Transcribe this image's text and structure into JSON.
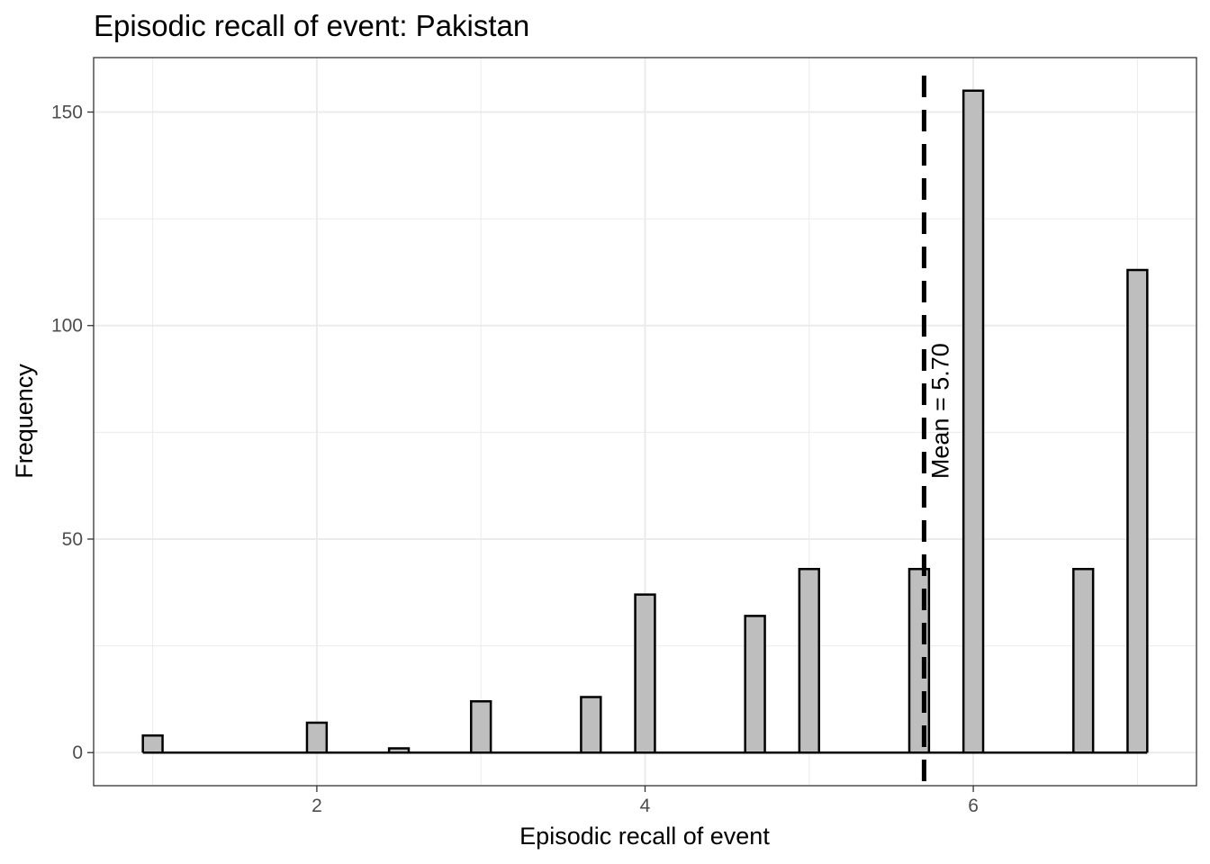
{
  "chart_data": {
    "type": "bar",
    "title": "Episodic recall of event: Pakistan",
    "xlabel": "Episodic recall of event",
    "ylabel": "Frequency",
    "x_ticks": [
      2,
      4,
      6
    ],
    "y_ticks": [
      0,
      50,
      100,
      150
    ],
    "xlim": [
      0.64,
      7.36
    ],
    "ylim": [
      -7.75,
      162.75
    ],
    "grid": true,
    "bins": [
      {
        "x": 1.0,
        "value": 4
      },
      {
        "x": 1.5,
        "value": 0
      },
      {
        "x": 2.0,
        "value": 7
      },
      {
        "x": 2.5,
        "value": 1
      },
      {
        "x": 3.0,
        "value": 12
      },
      {
        "x": 3.5,
        "value": 0
      },
      {
        "x": 3.67,
        "value": 13
      },
      {
        "x": 4.0,
        "value": 0
      },
      {
        "x": 4.0,
        "value": 37
      },
      {
        "x": 4.5,
        "value": 0
      },
      {
        "x": 4.67,
        "value": 32
      },
      {
        "x": 5.0,
        "value": 43
      },
      {
        "x": 5.5,
        "value": 0
      },
      {
        "x": 5.67,
        "value": 43
      },
      {
        "x": 6.0,
        "value": 155
      },
      {
        "x": 6.5,
        "value": 0
      },
      {
        "x": 6.67,
        "value": 43
      },
      {
        "x": 7.0,
        "value": 113
      }
    ],
    "mean": 5.7,
    "mean_label": "Mean = 5.70",
    "bar_fill": "#bebebe",
    "bar_stroke": "#000000",
    "grid_color": "#ebebeb"
  }
}
